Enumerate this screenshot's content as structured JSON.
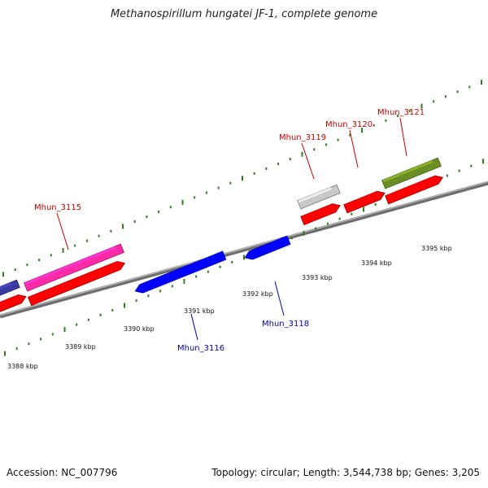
{
  "title": "Methanospirillum hungatei JF-1, complete genome",
  "footer": {
    "accession": "Accession: NC_007796",
    "summary": "Topology: circular; Length: 3,544,738 bp; Genes: 3,205"
  },
  "colors": {
    "backbone": "#8a8a8a",
    "tick": "#2f7d1f",
    "label_forward": "#cc0000",
    "label_reverse": "#0000bb",
    "cds_red": "#ff0000",
    "cds_blue": "#0000ff",
    "cds_pink": "#ff2aa8",
    "cds_grey": "#c8c8c8",
    "cds_olive": "#6b8e23",
    "cds_navy": "#3a3aa0"
  },
  "scale_labels": [
    "3388 kbp",
    "3389 kbp",
    "3390 kbp",
    "3391 kbp",
    "3392 kbp",
    "3393 kbp",
    "3394 kbp",
    "3395 kbp"
  ],
  "gene_labels": [
    {
      "text": "Mhun_3115",
      "strand": "forward"
    },
    {
      "text": "Mhun_3116",
      "strand": "reverse"
    },
    {
      "text": "Mhun_3118",
      "strand": "reverse"
    },
    {
      "text": "Mhun_3119",
      "strand": "forward"
    },
    {
      "text": "Mhun_3120",
      "strand": "forward"
    },
    {
      "text": "Mhun_3121",
      "strand": "forward"
    }
  ],
  "features": [
    {
      "name": "cds-partial-left",
      "color": "red"
    },
    {
      "name": "gene-partial-left",
      "color": "navy"
    },
    {
      "name": "Mhun_3115-gene",
      "color": "pink"
    },
    {
      "name": "Mhun_3115-cds",
      "color": "red"
    },
    {
      "name": "Mhun_3116-cds",
      "color": "blue"
    },
    {
      "name": "Mhun_3118-cds",
      "color": "blue"
    },
    {
      "name": "Mhun_3119-gene",
      "color": "grey"
    },
    {
      "name": "Mhun_3119-cds",
      "color": "red"
    },
    {
      "name": "Mhun_3120-cds",
      "color": "red"
    },
    {
      "name": "Mhun_3121-gene",
      "color": "olive"
    },
    {
      "name": "Mhun_3121-cds",
      "color": "red"
    }
  ]
}
